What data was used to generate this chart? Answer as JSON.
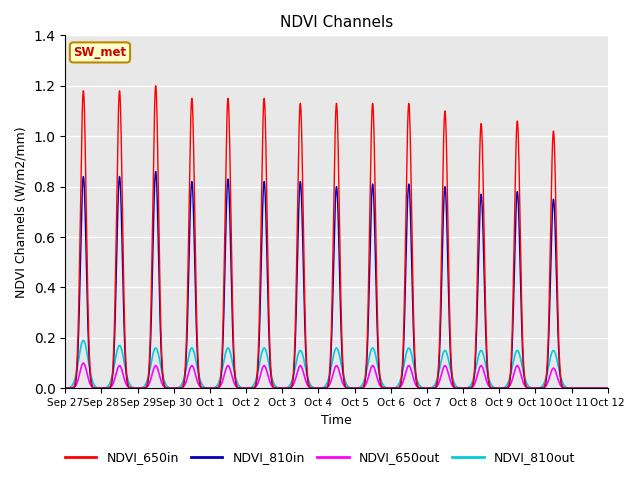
{
  "title": "NDVI Channels",
  "xlabel": "Time",
  "ylabel": "NDVI Channels (W/m2/mm)",
  "ylim": [
    0,
    1.4
  ],
  "plot_bg_color": "#e8e8e8",
  "fig_bg_color": "#ffffff",
  "legend_labels": [
    "NDVI_650in",
    "NDVI_810in",
    "NDVI_650out",
    "NDVI_810out"
  ],
  "legend_colors": [
    "#ff0000",
    "#0000bb",
    "#ff00ff",
    "#00ccdd"
  ],
  "annotation_text": "SW_met",
  "annotation_bg": "#ffffcc",
  "annotation_border": "#bb8800",
  "tick_labels": [
    "Sep 27",
    "Sep 28",
    "Sep 29",
    "Sep 30",
    "Oct 1",
    "Oct 2",
    "Oct 3",
    "Oct 4",
    "Oct 5",
    "Oct 6",
    "Oct 7",
    "Oct 8",
    "Oct 9",
    "Oct 10",
    "Oct 11",
    "Oct 12"
  ],
  "n_days": 15,
  "peaks_650in": [
    1.18,
    1.18,
    1.2,
    1.15,
    1.15,
    1.15,
    1.13,
    1.13,
    1.13,
    1.13,
    1.1,
    1.05,
    1.06,
    1.02,
    0.0
  ],
  "peaks_810in": [
    0.84,
    0.84,
    0.86,
    0.82,
    0.83,
    0.82,
    0.82,
    0.8,
    0.81,
    0.81,
    0.8,
    0.77,
    0.78,
    0.75,
    0.0
  ],
  "peaks_650out": [
    0.1,
    0.09,
    0.09,
    0.09,
    0.09,
    0.09,
    0.09,
    0.09,
    0.09,
    0.09,
    0.09,
    0.09,
    0.09,
    0.08,
    0.0
  ],
  "peaks_810out": [
    0.19,
    0.17,
    0.16,
    0.16,
    0.16,
    0.16,
    0.15,
    0.16,
    0.16,
    0.16,
    0.15,
    0.15,
    0.15,
    0.15,
    0.0
  ],
  "spike_sigma_in": 0.08,
  "spike_sigma_out": 0.1,
  "figsize": [
    6.4,
    4.8
  ],
  "dpi": 100
}
